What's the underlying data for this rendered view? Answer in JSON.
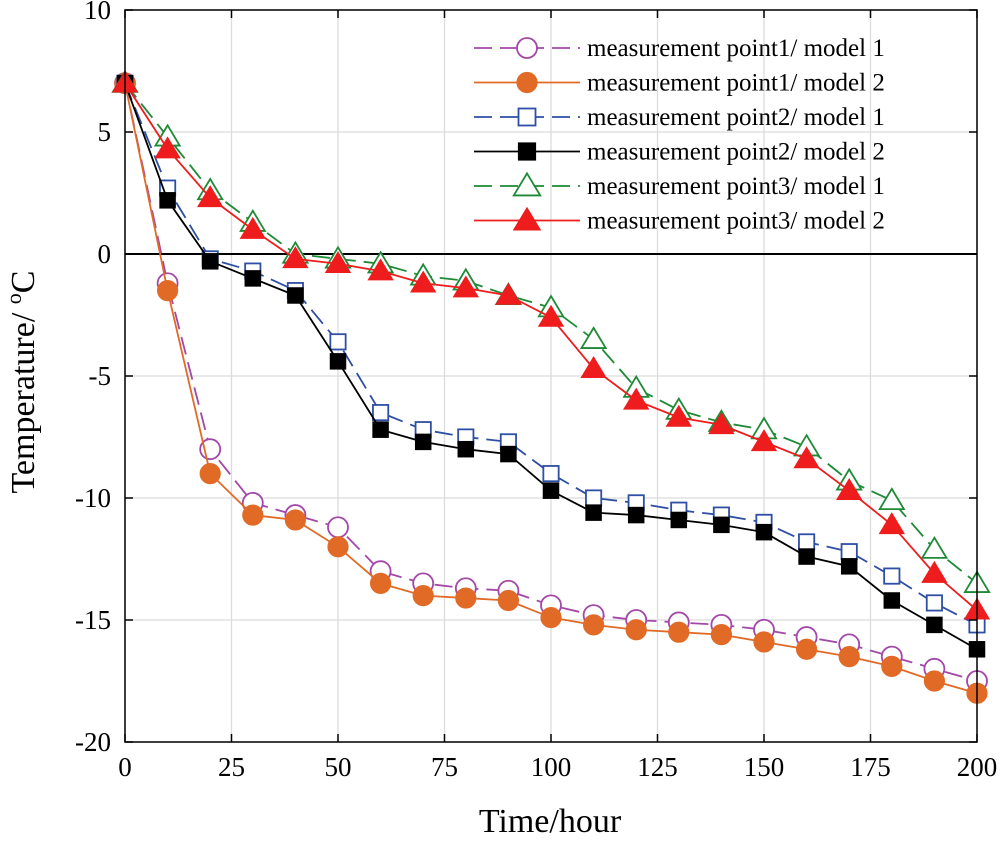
{
  "chart_data": {
    "type": "line",
    "title": "",
    "xlabel": "Time/hour",
    "ylabel_main": "Temperature/ ",
    "ylabel_sup": "o",
    "ylabel_unit": "C",
    "xlim": [
      0,
      200
    ],
    "ylim": [
      -20,
      10
    ],
    "xticks": [
      0,
      25,
      50,
      75,
      100,
      125,
      150,
      175,
      200
    ],
    "yticks": [
      10,
      5,
      0,
      -5,
      -10,
      -15,
      -20
    ],
    "ytick_labels": [
      "10",
      "5",
      "0",
      "-5",
      "-10",
      "-15",
      "-20"
    ],
    "grid": true,
    "zero_line": true,
    "legend_position": "top-right",
    "x": [
      0,
      10,
      20,
      30,
      40,
      50,
      60,
      70,
      80,
      90,
      100,
      110,
      120,
      130,
      140,
      150,
      160,
      170,
      180,
      190,
      200
    ],
    "series": [
      {
        "name": "measurement point1/ model 1",
        "color": "#a347a8",
        "dash": true,
        "marker": "circle",
        "filled": false,
        "values": [
          7.0,
          -1.2,
          -8.0,
          -10.2,
          -10.7,
          -11.2,
          -13.0,
          -13.5,
          -13.7,
          -13.8,
          -14.4,
          -14.8,
          -15.0,
          -15.1,
          -15.2,
          -15.4,
          -15.7,
          -16.0,
          -16.5,
          -17.0,
          -17.5
        ]
      },
      {
        "name": "measurement point1/ model 2",
        "color": "#e06a26",
        "dash": false,
        "marker": "circle",
        "filled": true,
        "values": [
          7.0,
          -1.5,
          -9.0,
          -10.7,
          -10.9,
          -12.0,
          -13.5,
          -14.0,
          -14.1,
          -14.2,
          -14.9,
          -15.2,
          -15.4,
          -15.5,
          -15.6,
          -15.9,
          -16.2,
          -16.5,
          -16.9,
          -17.5,
          -18.0
        ]
      },
      {
        "name": "measurement point2/ model 1",
        "color": "#2e4fa3",
        "dash": true,
        "marker": "square",
        "filled": false,
        "values": [
          7.0,
          2.7,
          -0.2,
          -0.7,
          -1.5,
          -3.6,
          -6.5,
          -7.2,
          -7.5,
          -7.7,
          -9.0,
          -10.0,
          -10.2,
          -10.5,
          -10.7,
          -11.0,
          -11.8,
          -12.2,
          -13.2,
          -14.3,
          -15.2
        ]
      },
      {
        "name": "measurement point2/ model 2",
        "color": "#000000",
        "dash": false,
        "marker": "square",
        "filled": true,
        "values": [
          7.0,
          2.2,
          -0.3,
          -1.0,
          -1.7,
          -4.4,
          -7.2,
          -7.7,
          -8.0,
          -8.2,
          -9.7,
          -10.6,
          -10.7,
          -10.9,
          -11.1,
          -11.4,
          -12.4,
          -12.8,
          -14.2,
          -15.2,
          -16.2
        ]
      },
      {
        "name": "measurement point3/ model 1",
        "color": "#1f8a36",
        "dash": true,
        "marker": "triangle",
        "filled": false,
        "values": [
          7.0,
          4.8,
          2.6,
          1.3,
          0.0,
          -0.2,
          -0.4,
          -0.9,
          -1.1,
          -1.7,
          -2.2,
          -3.5,
          -5.5,
          -6.4,
          -6.9,
          -7.2,
          -7.9,
          -9.3,
          -10.1,
          -12.1,
          -13.5
        ]
      },
      {
        "name": "measurement point3/ model 2",
        "color": "#ee1c1c",
        "dash": false,
        "marker": "triangle",
        "filled": true,
        "values": [
          7.0,
          4.3,
          2.3,
          1.0,
          -0.2,
          -0.4,
          -0.7,
          -1.2,
          -1.4,
          -1.7,
          -2.6,
          -4.7,
          -6.0,
          -6.7,
          -7.0,
          -7.7,
          -8.4,
          -9.7,
          -11.1,
          -13.1,
          -14.6
        ]
      }
    ]
  }
}
